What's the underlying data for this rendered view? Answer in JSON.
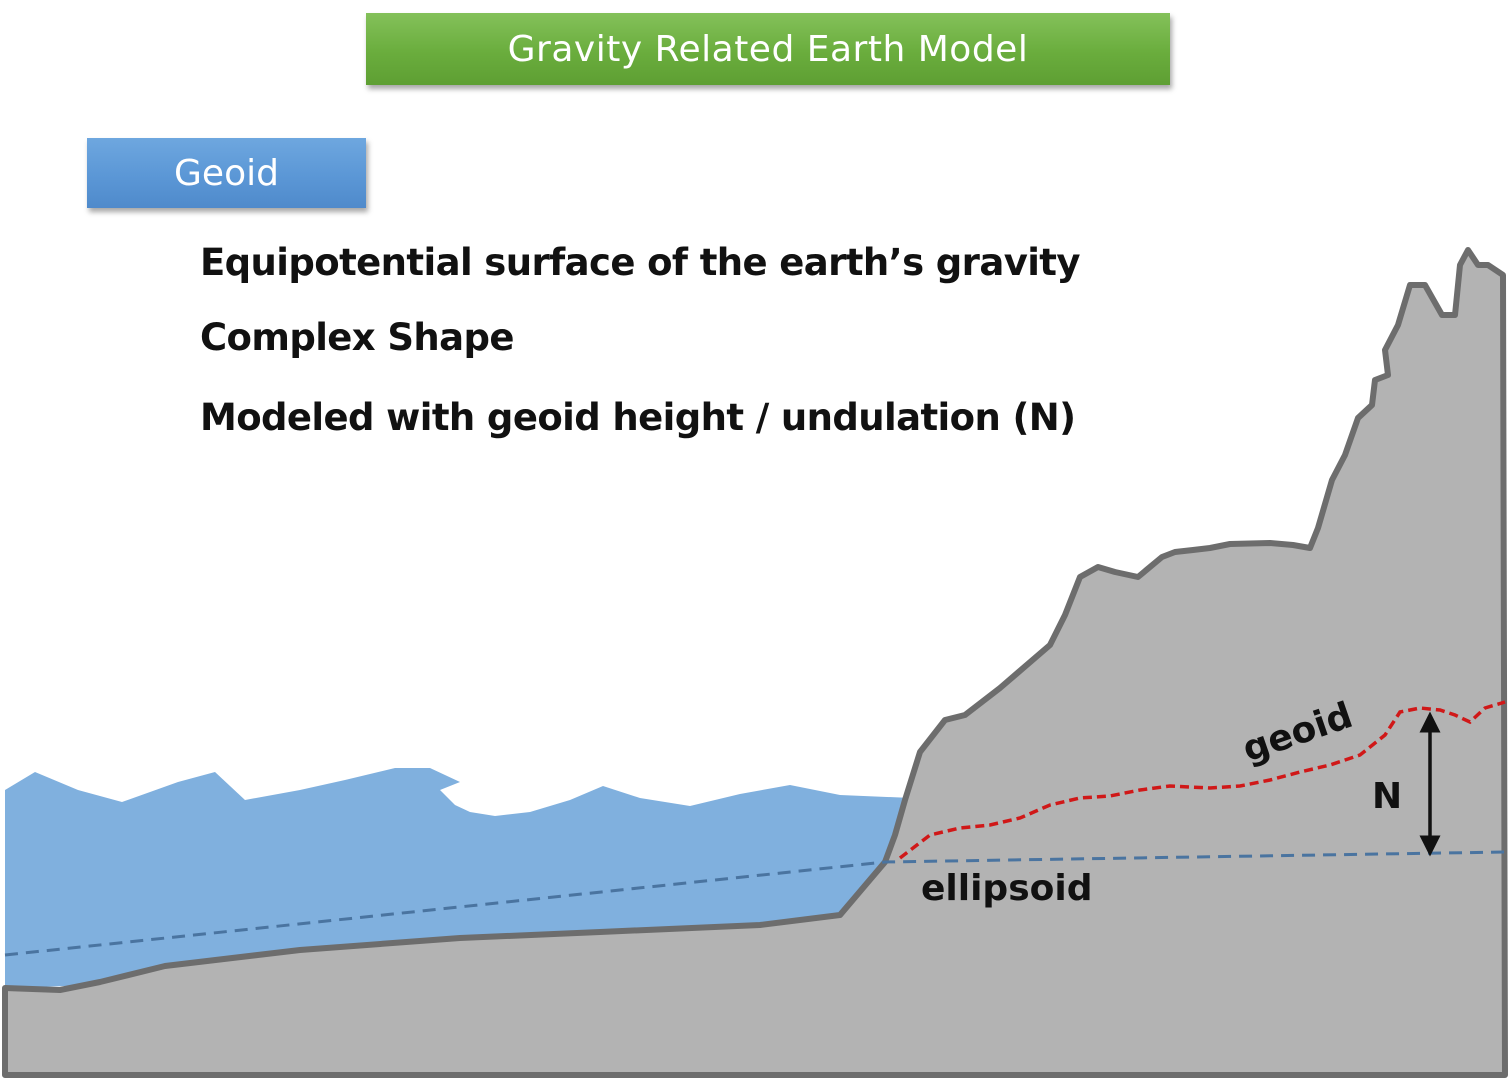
{
  "title": "Gravity Related Earth Model",
  "section_label": "Geoid",
  "bullets": [
    "Equipotential surface of the earth’s gravity",
    "Complex Shape",
    "Modeled with geoid height / undulation (N)"
  ],
  "diagram": {
    "geoid_label": "geoid",
    "ellipsoid_label": "ellipsoid",
    "undulation_label": "N"
  },
  "colors": {
    "title_banner": "#6aad3d",
    "section_label": "#5b97d6",
    "ocean": "#80b0de",
    "land": "#b3b3b3",
    "land_outline": "#6d6d6d",
    "geoid_line": "#d01818",
    "ellipsoid_line": "#4a74a0"
  }
}
